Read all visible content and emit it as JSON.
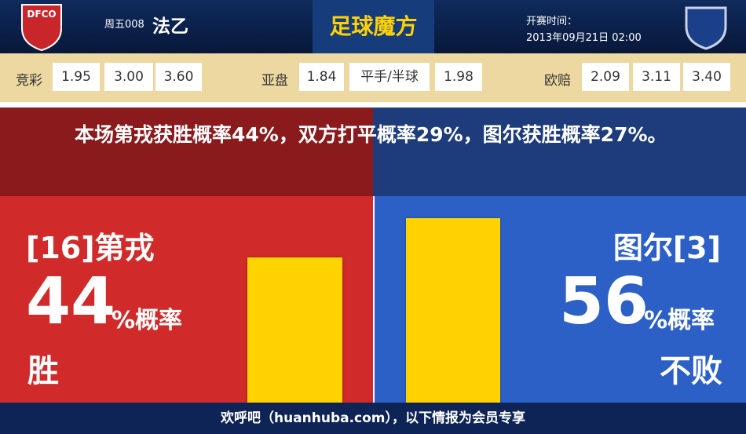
{
  "header": {
    "home_logo": "DFCO",
    "match_no": "周五008",
    "league": "法乙",
    "brand": "足球魔方",
    "kickoff_label": "开赛时间：",
    "kickoff": "2013年09月21日 02:00"
  },
  "odds": [
    {
      "label": "竞彩",
      "values": [
        "1.95",
        "3.00",
        "3.60"
      ]
    },
    {
      "label": "亚盘",
      "values": [
        "1.84",
        "平手/半球",
        "1.98"
      ]
    },
    {
      "label": "欧赔",
      "values": [
        "2.09",
        "3.11",
        "3.40"
      ]
    }
  ],
  "summary": "本场第戎获胜概率44%，双方打平概率29%，图尔获胜概率27%。",
  "home": {
    "team": "[16]第戎",
    "percent": 44,
    "unit": "%概率",
    "outcome": "胜",
    "color": "#ffd200"
  },
  "away": {
    "team": "图尔[3]",
    "percent": 56,
    "unit": "%概率",
    "outcome": "不败",
    "color": "#ffd200"
  },
  "footer": "欢呼吧（huanhuba.com），以下情报为会员专享"
}
